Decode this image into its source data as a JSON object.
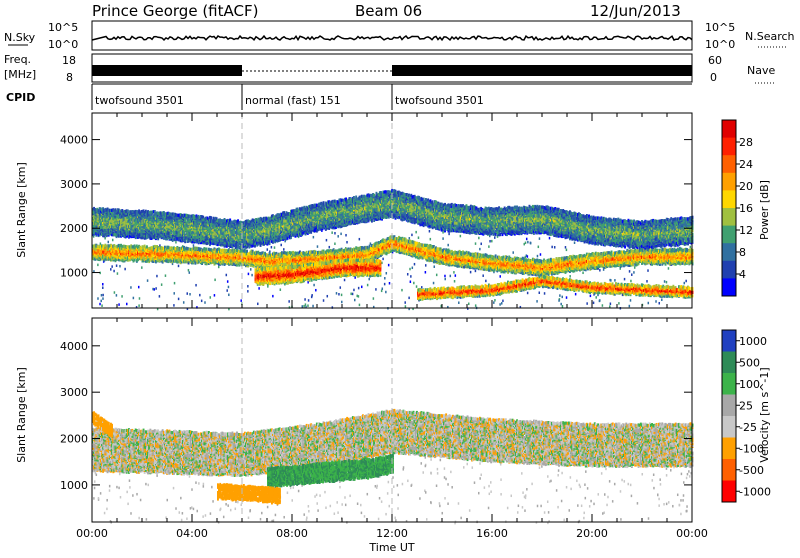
{
  "header": {
    "station": "Prince George (fitACF)",
    "beam": "Beam 06",
    "date": "12/Jun/2013"
  },
  "noise_panel": {
    "left_label": "N.Sky",
    "right_label": "N.Search",
    "left_ticks": [
      "10^5",
      "10^0"
    ],
    "right_ticks": [
      "10^5",
      "10^0"
    ]
  },
  "freq_panel": {
    "left_label_1": "Freq.",
    "left_label_2": "[MHz]",
    "right_label": "Nave",
    "left_ticks": [
      "18",
      "8"
    ],
    "right_ticks": [
      "60",
      "0"
    ]
  },
  "cpid": {
    "label": "CPID",
    "segments": [
      {
        "name": "twofsound 3501",
        "start_hour": 0,
        "end_hour": 6
      },
      {
        "name": "normal (fast) 151",
        "start_hour": 6,
        "end_hour": 12
      },
      {
        "name": "twofsound 3501",
        "start_hour": 12,
        "end_hour": 24
      }
    ]
  },
  "colors": {
    "power": [
      "#0000ff",
      "#2040b0",
      "#3070a0",
      "#40a070",
      "#a0c040",
      "#ffd700",
      "#ffa000",
      "#ff6000",
      "#ff2000",
      "#e00000"
    ],
    "velocity": [
      "#2040c0",
      "#2e8b57",
      "#3cb34a",
      "#a8a8a8",
      "#c8c8c8",
      "#ffa000",
      "#ff6000",
      "#ff0000"
    ]
  },
  "chart_data": [
    {
      "type": "heatmap",
      "title": "Power",
      "xlabel": "",
      "ylabel": "Slant Range [km]",
      "y_ticks": [
        "1000",
        "2000",
        "3000",
        "4000"
      ],
      "ylim": [
        200,
        4600
      ],
      "colorbar": {
        "label": "Power [dB]",
        "ticks": [
          "4",
          "8",
          "12",
          "16",
          "20",
          "24",
          "28"
        ],
        "range": [
          0,
          30
        ]
      },
      "bands": [
        {
          "x": [
            0,
            3,
            6,
            7,
            9,
            11,
            12,
            14,
            16,
            18,
            20,
            22,
            24
          ],
          "y": [
            1500,
            1450,
            1380,
            1300,
            1350,
            1450,
            1700,
            1400,
            1250,
            1150,
            1300,
            1400,
            1400
          ],
          "width_km": 320,
          "power_db": 22
        },
        {
          "x": [
            0,
            3,
            6,
            7,
            9,
            11,
            12,
            14,
            16,
            18,
            20,
            22,
            24
          ],
          "y": [
            2200,
            2100,
            1900,
            2000,
            2300,
            2500,
            2600,
            2300,
            2200,
            2250,
            2000,
            1900,
            2000
          ],
          "width_km": 600,
          "power_db": 12
        },
        {
          "x": [
            6.5,
            8,
            10,
            11.5
          ],
          "y": [
            950,
            1000,
            1150,
            1150
          ],
          "width_km": 350,
          "power_db": 28
        },
        {
          "x": [
            13,
            16,
            18,
            20,
            22,
            24
          ],
          "y": [
            550,
            650,
            850,
            700,
            650,
            600
          ],
          "width_km": 220,
          "power_db": 26
        }
      ]
    },
    {
      "type": "heatmap",
      "title": "Velocity",
      "xlabel": "Time UT",
      "ylabel": "Slant Range [km]",
      "x_ticks": [
        "00:00",
        "04:00",
        "08:00",
        "12:00",
        "16:00",
        "20:00",
        "00:00"
      ],
      "y_ticks": [
        "1000",
        "2000",
        "3000",
        "4000"
      ],
      "ylim": [
        200,
        4600
      ],
      "colorbar": {
        "label": "Velocity [m s^-1]",
        "ticks": [
          "1000",
          "500",
          "100",
          "25",
          "-25",
          "-100",
          "-500",
          "-1000"
        ]
      },
      "bands": [
        {
          "x": [
            0,
            3,
            6,
            9,
            12,
            16,
            20,
            24
          ],
          "y": [
            1800,
            1750,
            1700,
            1900,
            2200,
            2000,
            1900,
            1900
          ],
          "width_km": 900,
          "velocity_ms": 0
        },
        {
          "x": [
            7,
            9,
            11,
            12
          ],
          "y": [
            1200,
            1300,
            1400,
            1500
          ],
          "width_km": 400,
          "velocity_ms": 300
        },
        {
          "x": [
            5,
            6.5,
            7.5
          ],
          "y": [
            900,
            850,
            800
          ],
          "width_km": 300,
          "velocity_ms": -200
        },
        {
          "x": [
            0,
            0.8
          ],
          "y": [
            2500,
            2200
          ],
          "width_km": 250,
          "velocity_ms": -150
        }
      ]
    }
  ]
}
